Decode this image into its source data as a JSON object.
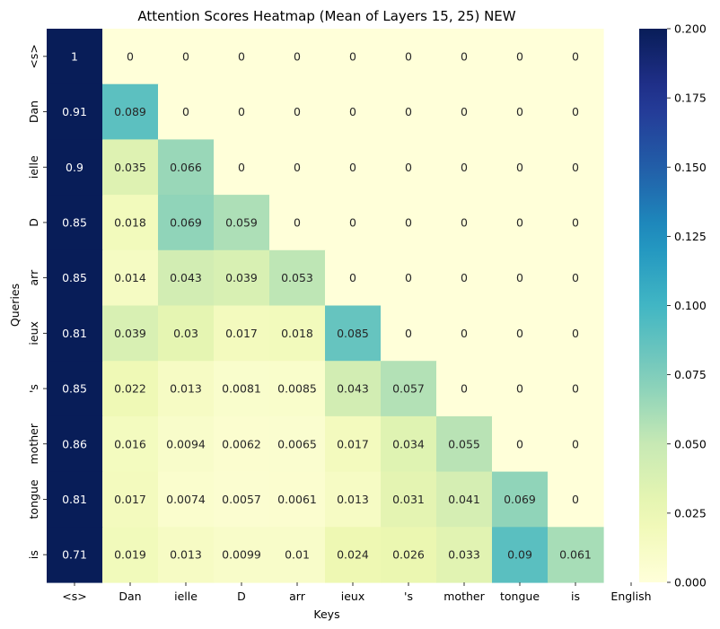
{
  "chart_data": {
    "type": "heatmap",
    "title": "Attention Scores Heatmap (Mean of Layers 15, 25) NEW",
    "xlabel": "Keys",
    "ylabel": "Queries",
    "x_tick_labels": [
      "<s>",
      "Dan",
      "ielle",
      "D",
      "arr",
      "ieux",
      "'s",
      "mother",
      "tongue",
      "is",
      "English"
    ],
    "y_tick_labels": [
      "<s>",
      "Dan",
      "ielle",
      "D",
      "arr",
      "ieux",
      "'s",
      "mother",
      "tongue",
      "is"
    ],
    "matrix": [
      [
        "1",
        "0",
        "0",
        "0",
        "0",
        "0",
        "0",
        "0",
        "0",
        "0",
        null
      ],
      [
        "0.91",
        "0.089",
        "0",
        "0",
        "0",
        "0",
        "0",
        "0",
        "0",
        "0",
        null
      ],
      [
        "0.9",
        "0.035",
        "0.066",
        "0",
        "0",
        "0",
        "0",
        "0",
        "0",
        "0",
        null
      ],
      [
        "0.85",
        "0.018",
        "0.069",
        "0.059",
        "0",
        "0",
        "0",
        "0",
        "0",
        "0",
        null
      ],
      [
        "0.85",
        "0.014",
        "0.043",
        "0.039",
        "0.053",
        "0",
        "0",
        "0",
        "0",
        "0",
        null
      ],
      [
        "0.81",
        "0.039",
        "0.03",
        "0.017",
        "0.018",
        "0.085",
        "0",
        "0",
        "0",
        "0",
        null
      ],
      [
        "0.85",
        "0.022",
        "0.013",
        "0.0081",
        "0.0085",
        "0.043",
        "0.057",
        "0",
        "0",
        "0",
        null
      ],
      [
        "0.86",
        "0.016",
        "0.0094",
        "0.0062",
        "0.0065",
        "0.017",
        "0.034",
        "0.055",
        "0",
        "0",
        null
      ],
      [
        "0.81",
        "0.017",
        "0.0074",
        "0.0057",
        "0.0061",
        "0.013",
        "0.031",
        "0.041",
        "0.069",
        "0",
        null
      ],
      [
        "0.71",
        "0.019",
        "0.013",
        "0.0099",
        "0.01",
        "0.024",
        "0.026",
        "0.033",
        "0.09",
        "0.061",
        null
      ]
    ],
    "colorbar": {
      "min": 0,
      "max": 0.2,
      "colormap": "YlGnBu",
      "tick_labels": [
        "0.000",
        "0.025",
        "0.050",
        "0.075",
        "0.100",
        "0.125",
        "0.150",
        "0.175",
        "0.200"
      ]
    },
    "grid": false,
    "legend": "colorbar-right"
  }
}
